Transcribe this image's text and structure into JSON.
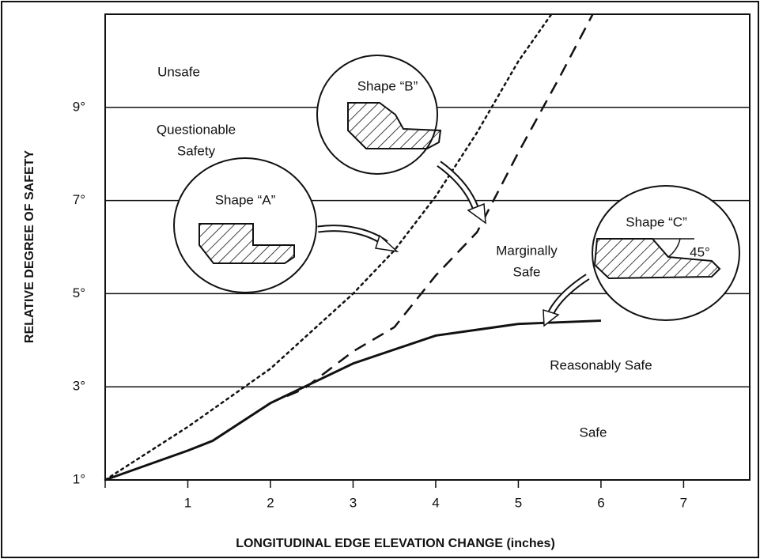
{
  "chart_data": {
    "type": "line",
    "xlabel": "LONGITUDINAL EDGE ELEVATION CHANGE (inches)",
    "ylabel": "RELATIVE DEGREE OF SAFETY",
    "xlim": [
      0,
      7.8
    ],
    "xticks": [
      1,
      2,
      3,
      4,
      5,
      6,
      7
    ],
    "ylim": [
      1,
      11
    ],
    "yticks": [
      {
        "value": 1,
        "label": "1°"
      },
      {
        "value": 3,
        "label": "3°"
      },
      {
        "value": 5,
        "label": "5°"
      },
      {
        "value": 7,
        "label": "7°"
      },
      {
        "value": 9,
        "label": "9°"
      }
    ],
    "grid": true,
    "series": [
      {
        "color": "#111111",
        "style": "dotted",
        "x": [
          0,
          1,
          2,
          3,
          3.5,
          4,
          4.5,
          5,
          5.4
        ],
        "values": [
          1,
          2.14,
          3.39,
          5,
          5.93,
          7.09,
          8.46,
          9.99,
          11
        ]
      },
      {
        "color": "#111111",
        "style": "dashed",
        "x": [
          2.2,
          2.4,
          3,
          3.5,
          4,
          4.5,
          5,
          5.5,
          5.9
        ],
        "values": [
          2.8,
          2.95,
          3.76,
          4.28,
          5.39,
          6.32,
          8.03,
          9.65,
          11
        ]
      },
      {
        "color": "#111111",
        "style": "solid",
        "x": [
          0,
          1,
          1.3,
          2,
          3,
          4,
          5,
          6
        ],
        "values": [
          1,
          1.63,
          1.84,
          2.65,
          3.5,
          4.1,
          4.35,
          4.42
        ]
      }
    ],
    "zone_labels": [
      [
        "Unsafe"
      ],
      [
        "Questionable",
        "Safety"
      ],
      [
        "Marginally",
        "Safe"
      ],
      [
        "Reasonably Safe"
      ],
      [
        "Safe"
      ]
    ],
    "callouts": [
      [
        "Shape “A”"
      ],
      [
        "Shape “B”"
      ],
      [
        "Shape “C”",
        "45°"
      ]
    ]
  }
}
